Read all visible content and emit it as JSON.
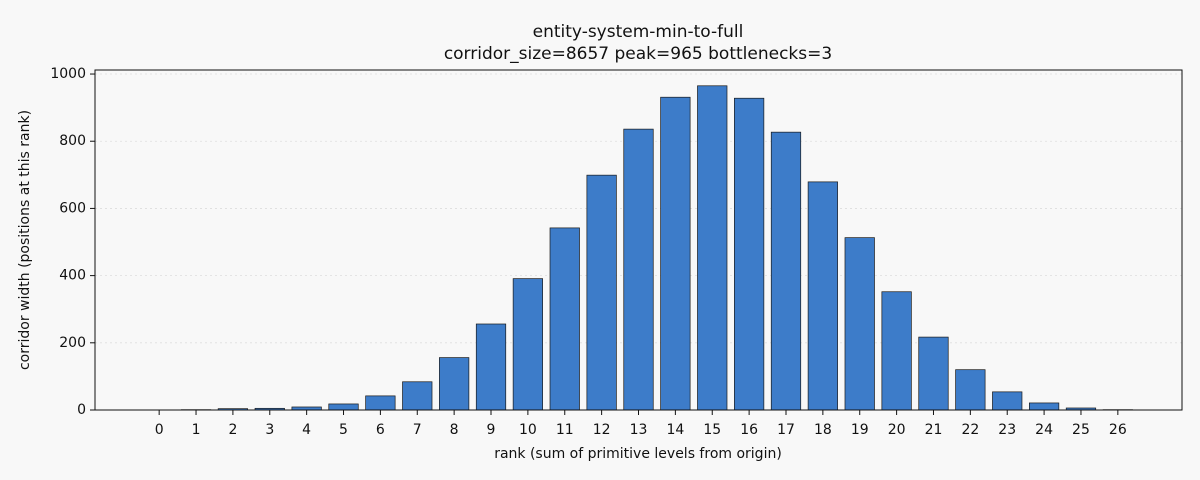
{
  "chart_data": {
    "type": "bar",
    "title": "entity-system-min-to-full",
    "subtitle": "corridor_size=8657  peak=965  bottlenecks=3",
    "x_label": "rank (sum of primitive levels from origin)",
    "y_label": "corridor width (positions at this rank)",
    "x": [
      0,
      1,
      2,
      3,
      4,
      5,
      6,
      7,
      8,
      9,
      10,
      11,
      12,
      13,
      14,
      15,
      16,
      17,
      18,
      19,
      20,
      21,
      22,
      23,
      24,
      25,
      26
    ],
    "values": [
      0,
      1,
      4,
      5,
      9,
      18,
      42,
      84,
      156,
      256,
      391,
      542,
      699,
      836,
      931,
      965,
      928,
      827,
      679,
      513,
      352,
      217,
      120,
      54,
      21,
      6,
      1
    ],
    "color": "#3d7cc9",
    "xlim": [
      -1.74,
      27.74
    ],
    "xticks": [
      0,
      1,
      2,
      3,
      4,
      5,
      6,
      7,
      8,
      9,
      10,
      11,
      12,
      13,
      14,
      15,
      16,
      17,
      18,
      19,
      20,
      21,
      22,
      23,
      24,
      25,
      26
    ],
    "ylim": [
      0,
      1012
    ],
    "yticks": [
      0,
      200,
      400,
      600,
      800,
      1000
    ],
    "grid": true
  }
}
